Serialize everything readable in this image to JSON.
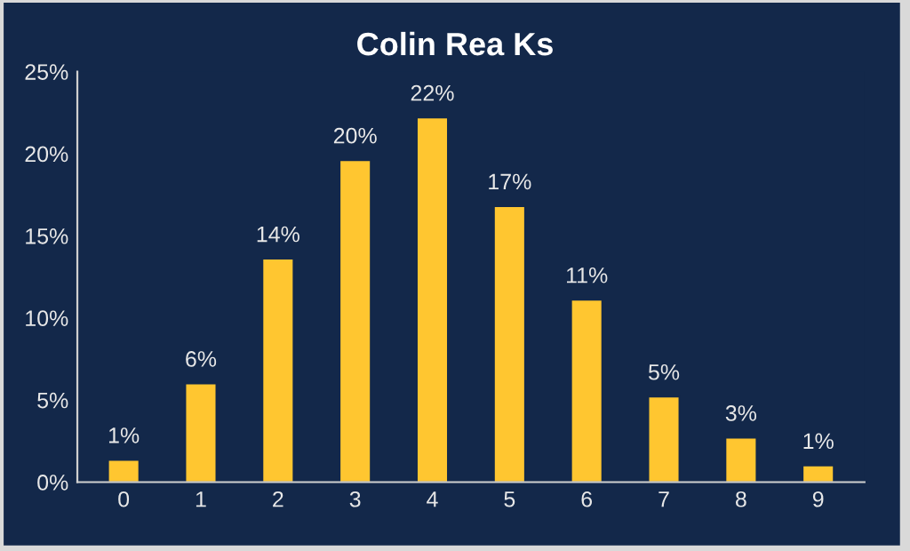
{
  "chart_data": {
    "type": "bar",
    "title": "Colin Rea Ks",
    "categories": [
      "0",
      "1",
      "2",
      "3",
      "4",
      "5",
      "6",
      "7",
      "8",
      "9"
    ],
    "series": [
      {
        "color": "#ffc630",
        "values": [
          1.35,
          6.0,
          13.6,
          19.6,
          22.2,
          16.8,
          11.1,
          5.2,
          2.7,
          1.0
        ],
        "value_labels": [
          "1%",
          "6%",
          "14%",
          "20%",
          "22%",
          "17%",
          "11%",
          "5%",
          "3%",
          "1%"
        ]
      }
    ],
    "ylim": [
      0,
      25
    ],
    "yticks": [
      {
        "value": 0,
        "label": "0%"
      },
      {
        "value": 5,
        "label": "5%"
      },
      {
        "value": 10,
        "label": "10%"
      },
      {
        "value": 15,
        "label": "15%"
      },
      {
        "value": 20,
        "label": "20%"
      },
      {
        "value": 25,
        "label": "25%"
      }
    ],
    "grid": false,
    "legend": false
  }
}
